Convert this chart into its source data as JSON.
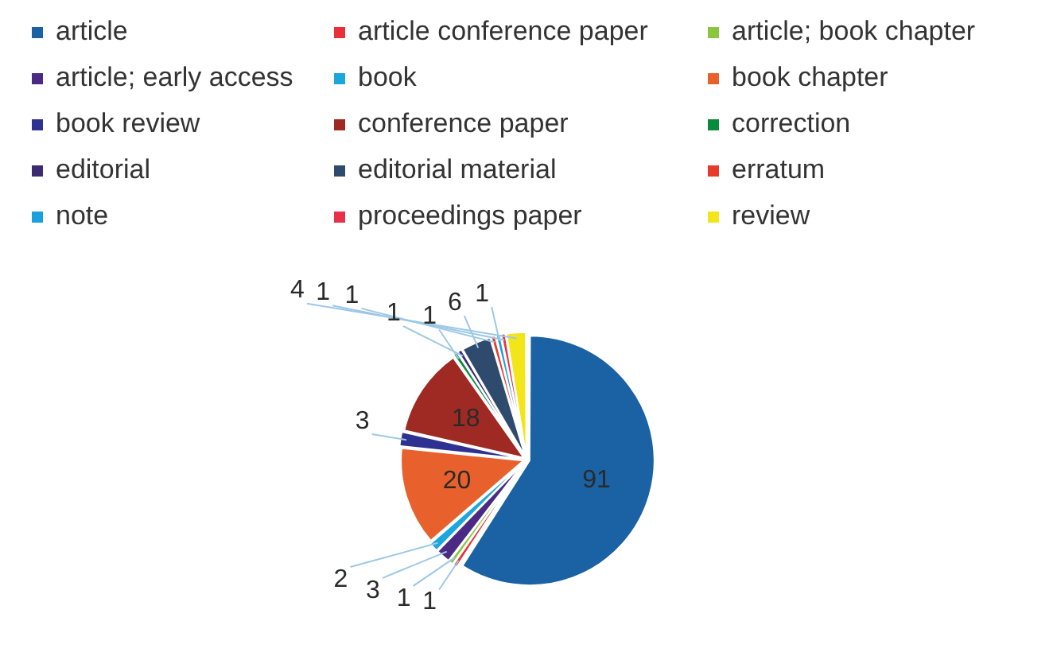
{
  "chart_data": {
    "type": "pie",
    "categories": [
      "article",
      "article conference paper",
      "article; book chapter",
      "article; early access",
      "book",
      "book chapter",
      "book review",
      "conference paper",
      "correction",
      "editorial",
      "editorial material",
      "erratum",
      "note",
      "proceedings paper",
      "review"
    ],
    "values": [
      91,
      1,
      1,
      3,
      2,
      20,
      3,
      18,
      1,
      1,
      6,
      1,
      1,
      1,
      4
    ],
    "colors": [
      "#1a62a3",
      "#e8303a",
      "#8cc63f",
      "#4b2a85",
      "#19a7dc",
      "#e8612c",
      "#2e3192",
      "#9e2a23",
      "#0a8a3c",
      "#3c2a72",
      "#2e4b6e",
      "#e83a2a",
      "#1aa0dc",
      "#e8304a",
      "#f2e51a"
    ],
    "legend": "top",
    "data_labels": true
  }
}
